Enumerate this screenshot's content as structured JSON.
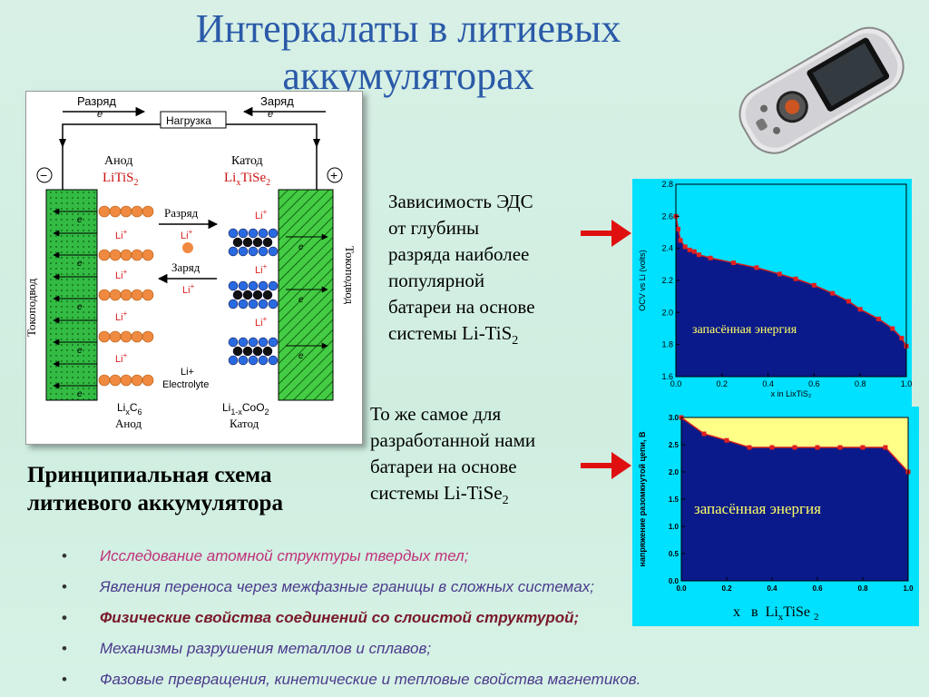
{
  "title": {
    "line1": "Интеркалаты в литиевых",
    "line2": "аккумуляторах"
  },
  "schematic": {
    "discharge_top": "Разряд",
    "charge_top": "Заряд",
    "electron": "e",
    "load": "Нагрузка",
    "anode": "Анод",
    "anode_material_base": "LiTiS",
    "anode_material_sub": "2",
    "cathode": "Катод",
    "cathode_material_a": "Li",
    "cathode_material_x": "x",
    "cathode_material_b": "TiSe",
    "cathode_material_sub": "2",
    "minus": "−",
    "plus": "+",
    "collector": "Токоподвод",
    "ion": "Li",
    "ion_sup": "+",
    "discharge_mid": "Разряд",
    "charge_mid": "Заряд",
    "electrolyte_ion": "Li+",
    "electrolyte": "Electrolyte",
    "anode_bottom_a": "Li",
    "anode_bottom_x": "x",
    "anode_bottom_b": "C",
    "anode_bottom_sub": "6",
    "anode_bottom_label": "Анод",
    "cathode_bottom_a": "Li",
    "cathode_bottom_x": "1-x",
    "cathode_bottom_b": "CoO",
    "cathode_bottom_sub": "2",
    "cathode_bottom_label": "Катод"
  },
  "caption_left": "Принципиальная схема литиевого аккумулятора",
  "desc1": {
    "lines": [
      "Зависимость ЭДС",
      "от глубины",
      "разряда наиболее",
      "популярной",
      "батареи на основе"
    ],
    "last_prefix": "системы Li-TiS",
    "last_sub": "2"
  },
  "desc2": {
    "lines": [
      "То же самое для",
      "разработанной нами",
      "батареи на основе"
    ],
    "last_prefix": "системы Li-TiSe",
    "last_sub": "2"
  },
  "tise_xlabel": {
    "x": "x",
    "v": "в",
    "li": "Li",
    "sub_x": "x",
    "tise": "TiSe",
    "sub2": "2"
  },
  "bullets": [
    "Исследование атомной структуры твердых тел;",
    "Явления переноса через  межфазные границы в сложных системах;",
    "Физические свойства соединений со слоистой структурой;",
    "Механизмы разрушения металлов и  сплавов;",
    "Фазовые превращения, кинетические и тепловые свойства магнетиков."
  ],
  "colors": {
    "title": "#2a5aa8",
    "chart_bg": "#00e0ff",
    "chart_fill": "#0a1a8a",
    "stored_fill": "#ffff88",
    "point": "#e02020",
    "arrow": "#e01010",
    "electrode": "#33cc33"
  },
  "icons": {
    "arrow_1": "red-arrow-right-icon",
    "arrow_2": "red-arrow-right-icon",
    "phone": "mobile-phone-image"
  },
  "chart_data": [
    {
      "type": "line",
      "x": [
        0.0,
        0.01,
        0.02,
        0.04,
        0.06,
        0.08,
        0.1,
        0.15,
        0.25,
        0.35,
        0.45,
        0.52,
        0.6,
        0.68,
        0.75,
        0.8,
        0.88,
        0.94,
        0.98,
        1.0
      ],
      "y": [
        2.6,
        2.52,
        2.45,
        2.41,
        2.39,
        2.38,
        2.36,
        2.34,
        2.31,
        2.28,
        2.24,
        2.21,
        2.17,
        2.12,
        2.07,
        2.02,
        1.96,
        1.9,
        1.84,
        1.79
      ],
      "xlabel": "x in LixTiS₂",
      "ylabel": "OCV vs Li (volts)",
      "xlim": [
        0.0,
        1.0
      ],
      "ylim": [
        1.6,
        2.8
      ],
      "xticks": [
        "0.0",
        "0.2",
        "0.4",
        "0.6",
        "0.8",
        "1.0"
      ],
      "yticks": [
        "1.6",
        "1.8",
        "2.0",
        "2.2",
        "2.4",
        "2.6",
        "2.8"
      ],
      "annotation": "запасённая энергия"
    },
    {
      "type": "line",
      "x": [
        0.0,
        0.1,
        0.2,
        0.3,
        0.4,
        0.5,
        0.6,
        0.7,
        0.8,
        0.9,
        1.0
      ],
      "y": [
        3.0,
        2.7,
        2.58,
        2.45,
        2.45,
        2.45,
        2.45,
        2.45,
        2.45,
        2.45,
        2.0
      ],
      "xlabel": "",
      "ylabel": "напряжение разомкнутой цепи, В",
      "xlim": [
        0.0,
        1.0
      ],
      "ylim": [
        0.0,
        3.0
      ],
      "xticks": [
        "0.0",
        "0.2",
        "0.4",
        "0.6",
        "0.8",
        "1.0"
      ],
      "yticks": [
        "0.0",
        "0.5",
        "1.0",
        "1.5",
        "2.0",
        "2.5",
        "3.0"
      ],
      "annotation": "запасённая энергия"
    }
  ]
}
